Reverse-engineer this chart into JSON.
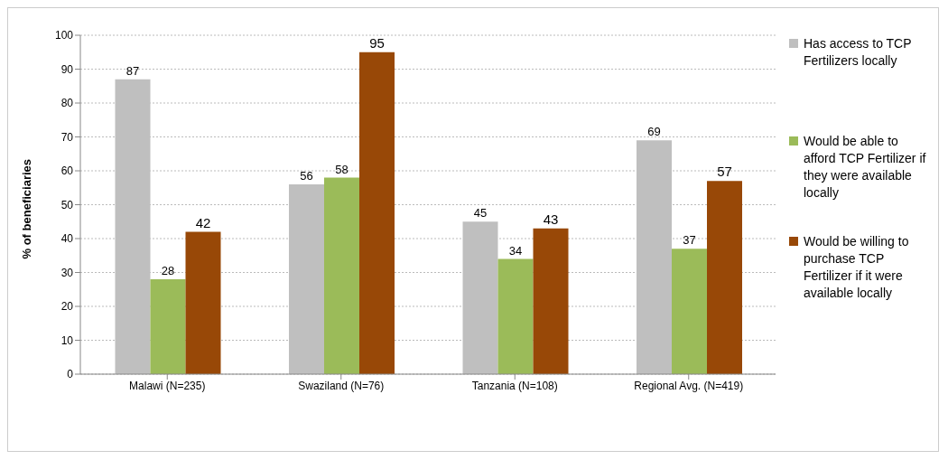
{
  "chart_data": {
    "type": "bar",
    "ylabel": "% of beneficiaries",
    "categories": [
      "Malawi (N=235)",
      "Swaziland (N=76)",
      "Tanzania (N=108)",
      "Regional Avg. (N=419)"
    ],
    "series": [
      {
        "name": "Has access to TCP Fertilizers locally",
        "color": "#bfbfbf",
        "values": [
          87,
          56,
          45,
          69
        ]
      },
      {
        "name": "Would be able to afford TCP Fertilizer  if they were available locally",
        "color": "#9bbb59",
        "values": [
          28,
          58,
          34,
          37
        ]
      },
      {
        "name": "Would be willing to purchase TCP Fertilizer if it were available locally",
        "color": "#984807",
        "values": [
          42,
          95,
          43,
          57
        ]
      }
    ],
    "ylim": [
      0,
      100
    ],
    "yticks": [
      0,
      10,
      20,
      30,
      40,
      50,
      60,
      70,
      80,
      90,
      100
    ],
    "grid": "y",
    "legend": "right",
    "data_labels": true
  }
}
